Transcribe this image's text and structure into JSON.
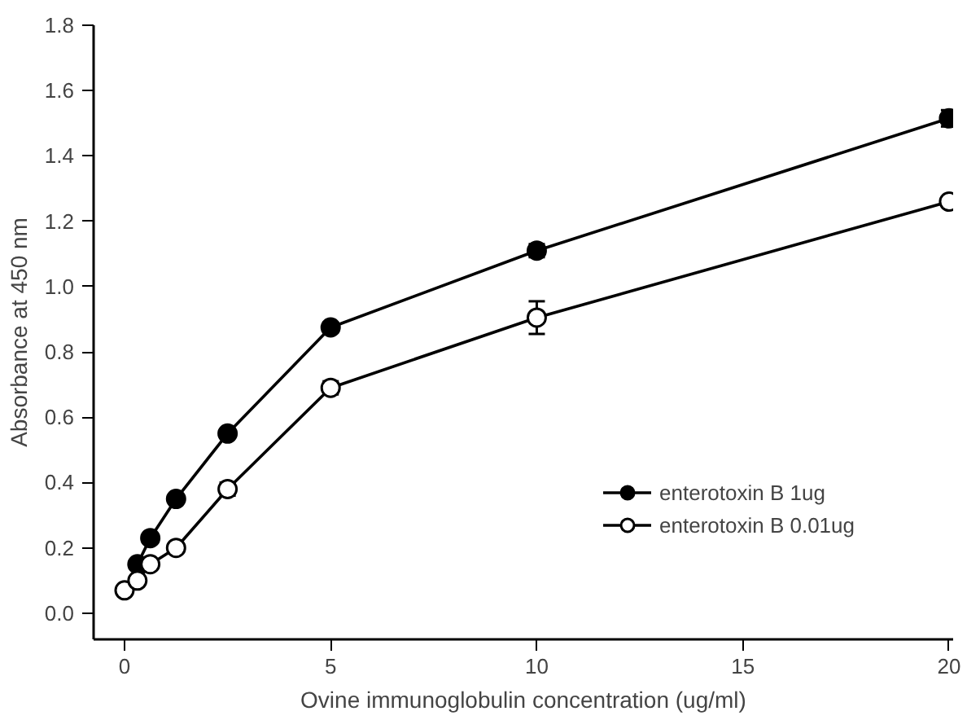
{
  "chart_data": {
    "type": "line",
    "xlabel": "Ovine immunoglobulin concentration (ug/ml)",
    "ylabel": "Absorbance at 450 nm",
    "xlim": [
      -0.75,
      20.1
    ],
    "xticks": [
      0,
      5,
      10,
      15,
      20
    ],
    "ylim": [
      -0.08,
      1.8
    ],
    "yticks": [
      {
        "value": 0,
        "label": "0.0"
      },
      {
        "value": 0.2,
        "label": "0.2"
      },
      {
        "value": 0.4,
        "label": "0.4"
      },
      {
        "value": 0.6,
        "label": "0.6"
      },
      {
        "value": 0.8,
        "label": "0.8"
      },
      {
        "value": 1.0,
        "label": "1.0"
      },
      {
        "value": 1.2,
        "label": "1.2"
      },
      {
        "value": 1.4,
        "label": "1.4"
      },
      {
        "value": 1.6,
        "label": "1.6"
      },
      {
        "value": 1.8,
        "label": "1.8"
      }
    ],
    "grid": false,
    "legend": "bottom right",
    "marker": "circle",
    "line_style": "solid",
    "series": [
      {
        "name": "enterotoxin B 1ug",
        "color": "#000000",
        "x": [
          0.3125,
          0.625,
          1.25,
          2.5,
          5,
          10,
          20
        ],
        "values": [
          0.15,
          0.23,
          0.35,
          0.55,
          0.875,
          1.11,
          1.515
        ],
        "errors": [
          0.01,
          0.01,
          0.01,
          0.01,
          0.015,
          0.02,
          0.025
        ]
      },
      {
        "name": "enterotoxin B 0.01ug",
        "color": "#ffffff",
        "x": [
          0,
          0.3125,
          0.625,
          1.25,
          2.5,
          5,
          10,
          20
        ],
        "values": [
          0.07,
          0.1,
          0.15,
          0.2,
          0.38,
          0.69,
          0.905,
          1.26
        ],
        "errors": [
          null,
          null,
          null,
          null,
          0.02,
          0.02,
          0.05,
          0.015
        ]
      }
    ]
  }
}
